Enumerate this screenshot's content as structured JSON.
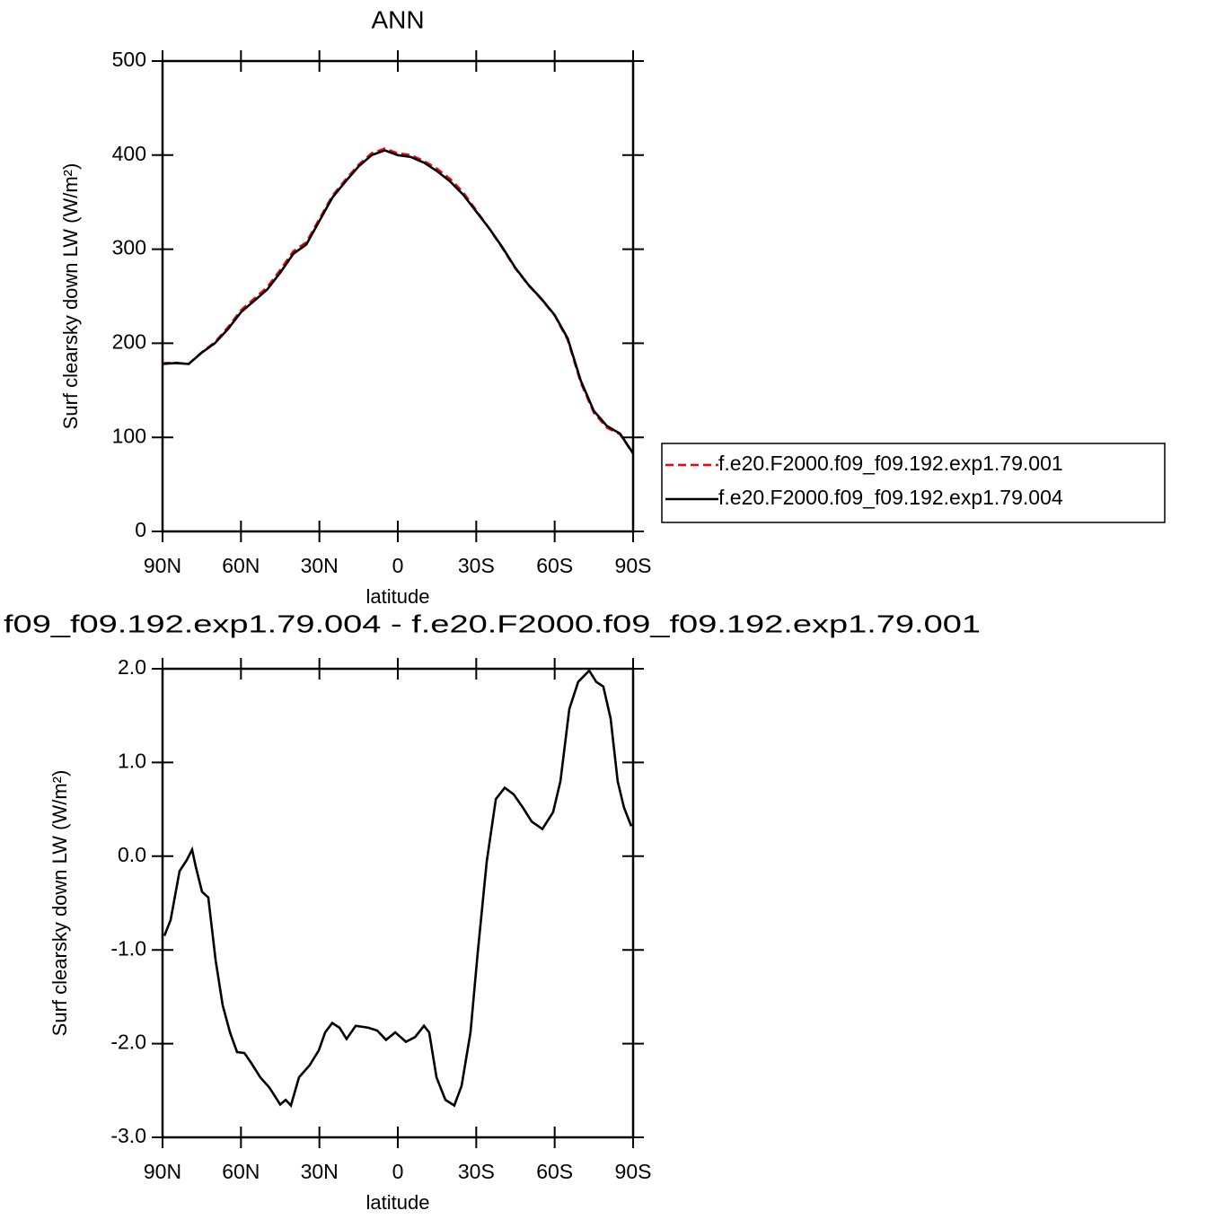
{
  "chart_data": [
    {
      "type": "line",
      "title": "ANN",
      "xlabel": "latitude",
      "ylabel": "Surf clearsky down LW (W/m²)",
      "x": [
        90,
        85,
        80,
        75,
        70,
        65,
        60,
        55,
        50,
        45,
        40,
        35,
        30,
        25,
        20,
        15,
        10,
        5,
        0,
        -5,
        -10,
        -15,
        -20,
        -25,
        -30,
        -35,
        -40,
        -45,
        -50,
        -55,
        -60,
        -65,
        -70,
        -75,
        -80,
        -85,
        -90
      ],
      "series": [
        {
          "name": "f.e20.F2000.f09_f09.192.exp1.79.001",
          "color": "#ff0000",
          "linestyle": "dashed",
          "values": [
            178.9,
            179.3,
            178,
            190.4,
            201.1,
            216.8,
            235.1,
            247.3,
            259.5,
            277.7,
            297.6,
            307.3,
            332.1,
            356.8,
            373.9,
            389.8,
            401.9,
            407,
            401.9,
            400,
            393.8,
            385.4,
            374.7,
            360.4,
            341.2,
            321.8,
            301.3,
            279.4,
            261.6,
            246.7,
            229.5,
            203.6,
            158.1,
            126.1,
            110.3,
            103.3,
            82.7
          ]
        },
        {
          "name": "f.e20.F2000.f09_f09.192.exp1.79.004",
          "color": "#000000",
          "linestyle": "solid",
          "values": [
            178,
            179,
            178,
            190,
            200,
            215,
            233,
            245,
            257,
            275,
            295,
            305,
            330,
            355,
            372,
            388,
            400,
            405,
            400,
            398,
            392,
            383,
            372,
            358,
            340,
            322,
            302,
            280,
            262,
            247,
            230,
            205,
            160,
            128,
            112,
            104,
            83
          ]
        }
      ],
      "xlim": [
        90,
        -90
      ],
      "xticks": [
        {
          "value": 90,
          "label": "90N"
        },
        {
          "value": 60,
          "label": "60N"
        },
        {
          "value": 30,
          "label": "30N"
        },
        0,
        {
          "value": -30,
          "label": "30S"
        },
        {
          "value": -60,
          "label": "60S"
        },
        {
          "value": -90,
          "label": "90S"
        }
      ],
      "ylim": [
        0,
        500
      ],
      "yticks": [
        0,
        100,
        200,
        300,
        400,
        500
      ],
      "legend": "right"
    },
    {
      "type": "line",
      "title": "f09_f09.192.exp1.79.004 - f.e20.F2000.f09_f09.192.exp1.79.001",
      "xlabel": "latitude",
      "ylabel": "Surf clearsky down LW (W/m²)",
      "x": [
        89.3,
        86.9,
        83.5,
        80.7,
        78.7,
        77.3,
        74.9,
        72.5,
        69.7,
        67,
        64.2,
        61.5,
        58.7,
        56,
        52.6,
        49.1,
        45,
        42.9,
        40.9,
        37.8,
        33.7,
        30.2,
        27.8,
        25.1,
        22.3,
        19.6,
        16.1,
        11.3,
        7.9,
        4.5,
        1,
        -3.1,
        -6.6,
        -10,
        -12,
        -14.8,
        -18.2,
        -21.6,
        -24.4,
        -27.8,
        -30.6,
        -34,
        -37.5,
        -40.9,
        -44.3,
        -47.8,
        -51.2,
        -55.3,
        -59.4,
        -62.2,
        -65.6,
        -69,
        -73.2,
        -75.9,
        -78.6,
        -81.4,
        -84.1,
        -86.5,
        -89.3
      ],
      "series": [
        {
          "color": "#000000",
          "linestyle": "solid",
          "values": [
            -0.85,
            -0.68,
            -0.16,
            -0.04,
            0.07,
            -0.11,
            -0.38,
            -0.44,
            -1.11,
            -1.59,
            -1.88,
            -2.09,
            -2.1,
            -2.21,
            -2.36,
            -2.47,
            -2.65,
            -2.6,
            -2.66,
            -2.36,
            -2.23,
            -2.07,
            -1.88,
            -1.78,
            -1.83,
            -1.95,
            -1.81,
            -1.83,
            -1.86,
            -1.96,
            -1.88,
            -1.98,
            -1.93,
            -1.81,
            -1.88,
            -2.36,
            -2.6,
            -2.66,
            -2.45,
            -1.88,
            -1.02,
            -0.06,
            0.61,
            0.73,
            0.66,
            0.52,
            0.37,
            0.29,
            0.47,
            0.8,
            1.57,
            1.86,
            1.98,
            1.86,
            1.81,
            1.47,
            0.8,
            0.52,
            0.32
          ]
        }
      ],
      "xlim": [
        90,
        -90
      ],
      "xticks": [
        {
          "value": 90,
          "label": "90N"
        },
        {
          "value": 60,
          "label": "60N"
        },
        {
          "value": 30,
          "label": "30N"
        },
        0,
        {
          "value": -30,
          "label": "30S"
        },
        {
          "value": -60,
          "label": "60S"
        },
        {
          "value": -90,
          "label": "90S"
        }
      ],
      "ylim": [
        -3,
        2
      ],
      "yticks": [
        {
          "value": 2,
          "label": "2.0"
        },
        {
          "value": 1,
          "label": "1.0"
        },
        {
          "value": 0,
          "label": "0.0"
        },
        {
          "value": -1,
          "label": "-1.0"
        },
        {
          "value": -2,
          "label": "-2.0"
        },
        {
          "value": -3,
          "label": "-3.0"
        }
      ]
    }
  ]
}
